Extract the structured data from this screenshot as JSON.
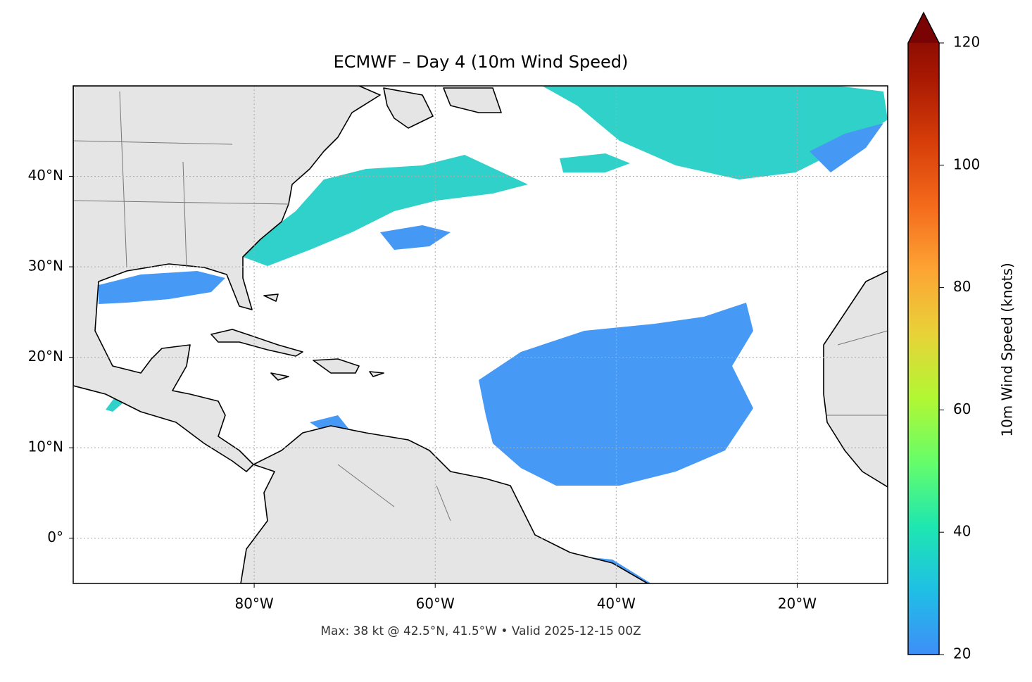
{
  "chart_data": {
    "type": "map",
    "title": "ECMWF – Day 4 (10m Wind Speed)",
    "annotation": "Max: 38 kt @ 42.5°N, 41.5°W • Valid 2025-12-15 00Z",
    "xlim": [
      -100,
      -10
    ],
    "ylim": [
      -5,
      50
    ],
    "xticks": [
      {
        "value": -80,
        "label": "80°W"
      },
      {
        "value": -60,
        "label": "60°W"
      },
      {
        "value": -40,
        "label": "40°W"
      },
      {
        "value": -20,
        "label": "20°W"
      }
    ],
    "yticks": [
      {
        "value": 0,
        "label": "0°"
      },
      {
        "value": 10,
        "label": "10°N"
      },
      {
        "value": 20,
        "label": "20°N"
      },
      {
        "value": 30,
        "label": "30°N"
      },
      {
        "value": 40,
        "label": "40°N"
      }
    ],
    "grid": true,
    "colorbar": {
      "label": "10m Wind Speed (knots)",
      "lim": [
        20,
        120
      ],
      "ticks": [
        20,
        40,
        60,
        80,
        100,
        120
      ]
    }
  }
}
